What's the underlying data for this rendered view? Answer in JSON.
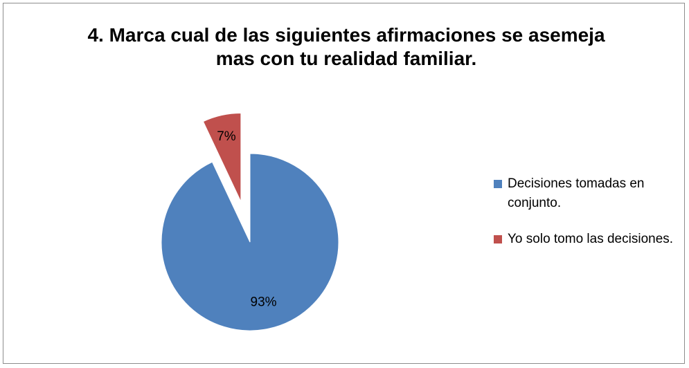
{
  "chart_data": {
    "type": "pie",
    "title": "4. Marca cual de las siguientes afirmaciones se asemeja mas con tu realidad familiar.",
    "categories": [
      "Decisiones tomadas en conjunto.",
      "Yo solo tomo las decisiones."
    ],
    "values": [
      93,
      7
    ],
    "value_labels": [
      "93%",
      "7%"
    ],
    "colors": [
      "#4f81bd",
      "#c0504d"
    ],
    "legend": "right"
  }
}
